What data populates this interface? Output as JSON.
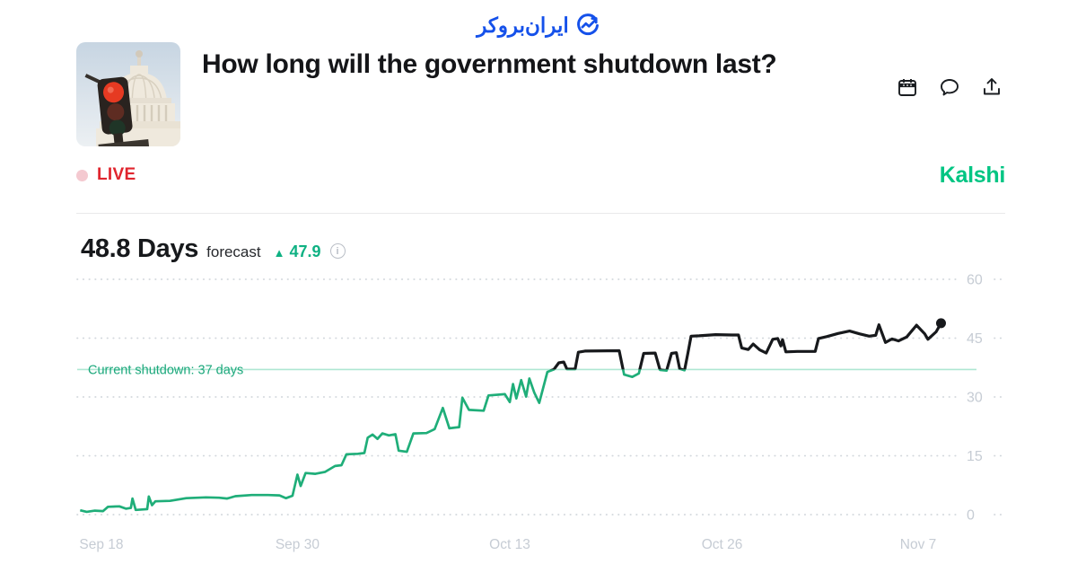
{
  "site_logo": {
    "text": "ایران‌بروکر",
    "color": "#1551ea"
  },
  "market": {
    "title": "How long will the government shutdown last?",
    "thumbnail": "us-capitol-with-red-traffic-light",
    "actions": [
      {
        "name": "calendar"
      },
      {
        "name": "comment"
      },
      {
        "name": "share"
      }
    ]
  },
  "status": {
    "live_label": "LIVE",
    "live_color": "#e0252e",
    "provider": "Kalshi",
    "provider_color": "#00c583"
  },
  "forecast": {
    "value": "48.8 Days",
    "label": "forecast",
    "change_direction": "up",
    "change_icon": "▲",
    "change_value": "47.9",
    "change_color": "#0fb183",
    "info_icon": "i"
  },
  "chart_data": {
    "type": "line",
    "title": "Government shutdown length forecast over time",
    "xlabel": "",
    "ylabel": "Days",
    "x_tick_labels": [
      "Sep 18",
      "Sep 30",
      "Oct 13",
      "Oct 26",
      "Nov 7"
    ],
    "x_tick_days": [
      0,
      12,
      25,
      38,
      50
    ],
    "x_range_days": [
      -1.3,
      52.5
    ],
    "y_ticks": [
      0,
      15,
      30,
      45,
      60
    ],
    "ylim": [
      0,
      65
    ],
    "grid": "dotted-horizontal",
    "axis_label_color": "#c6ccd4",
    "annotation": {
      "text": "Current shutdown: 37 days",
      "value": 37,
      "line_color": "#aee7d2",
      "text_color": "#1ca87c"
    },
    "series": [
      {
        "name": "forecast-days",
        "threshold": 37,
        "color_below": "#1fae79",
        "color_above": "#17191c",
        "end_dot": true,
        "points": [
          [
            -1.3,
            1.1
          ],
          [
            -0.9,
            0.7
          ],
          [
            -0.4,
            1.0
          ],
          [
            0.1,
            0.9
          ],
          [
            0.4,
            2.0
          ],
          [
            1.1,
            2.1
          ],
          [
            1.5,
            1.5
          ],
          [
            1.8,
            1.7
          ],
          [
            1.9,
            4.1
          ],
          [
            2.1,
            1.2
          ],
          [
            2.5,
            1.3
          ],
          [
            2.8,
            1.4
          ],
          [
            2.9,
            4.6
          ],
          [
            3.1,
            2.4
          ],
          [
            3.3,
            3.4
          ],
          [
            4.2,
            3.5
          ],
          [
            5.2,
            4.2
          ],
          [
            6.4,
            4.4
          ],
          [
            7.2,
            4.3
          ],
          [
            7.7,
            4.1
          ],
          [
            8.2,
            4.7
          ],
          [
            9.2,
            5.0
          ],
          [
            10.2,
            5.0
          ],
          [
            10.9,
            4.9
          ],
          [
            11.3,
            4.2
          ],
          [
            11.7,
            4.8
          ],
          [
            12.0,
            10.2
          ],
          [
            12.2,
            7.3
          ],
          [
            12.5,
            10.6
          ],
          [
            13.1,
            10.4
          ],
          [
            13.7,
            10.9
          ],
          [
            14.3,
            12.4
          ],
          [
            14.7,
            12.6
          ],
          [
            15.0,
            15.4
          ],
          [
            15.7,
            15.5
          ],
          [
            16.1,
            15.7
          ],
          [
            16.3,
            19.6
          ],
          [
            16.6,
            20.4
          ],
          [
            16.9,
            19.3
          ],
          [
            17.2,
            20.7
          ],
          [
            17.6,
            20.2
          ],
          [
            18.0,
            20.5
          ],
          [
            18.2,
            16.3
          ],
          [
            18.7,
            16.0
          ],
          [
            19.1,
            20.7
          ],
          [
            19.9,
            20.8
          ],
          [
            20.4,
            21.8
          ],
          [
            20.9,
            27.2
          ],
          [
            21.3,
            22.0
          ],
          [
            21.9,
            22.3
          ],
          [
            22.1,
            29.8
          ],
          [
            22.5,
            26.7
          ],
          [
            23.4,
            26.5
          ],
          [
            23.7,
            30.4
          ],
          [
            24.7,
            30.7
          ],
          [
            25.0,
            28.7
          ],
          [
            25.2,
            33.3
          ],
          [
            25.4,
            29.6
          ],
          [
            25.7,
            34.3
          ],
          [
            26.0,
            30.1
          ],
          [
            26.2,
            34.7
          ],
          [
            26.5,
            31.1
          ],
          [
            26.8,
            28.5
          ],
          [
            27.3,
            36.4
          ],
          [
            27.7,
            37.0
          ],
          [
            28.0,
            38.7
          ],
          [
            28.3,
            38.9
          ],
          [
            28.5,
            37.1
          ],
          [
            29.0,
            37.1
          ],
          [
            29.2,
            41.4
          ],
          [
            29.6,
            41.7
          ],
          [
            31.7,
            41.8
          ],
          [
            32.0,
            35.7
          ],
          [
            32.5,
            35.1
          ],
          [
            32.9,
            36.0
          ],
          [
            33.2,
            41.1
          ],
          [
            33.9,
            41.2
          ],
          [
            34.2,
            36.9
          ],
          [
            34.6,
            36.7
          ],
          [
            34.9,
            41.1
          ],
          [
            35.2,
            41.3
          ],
          [
            35.4,
            37.2
          ],
          [
            35.7,
            36.8
          ],
          [
            35.9,
            41.1
          ],
          [
            36.1,
            45.5
          ],
          [
            36.6,
            45.6
          ],
          [
            37.6,
            45.9
          ],
          [
            38.6,
            45.8
          ],
          [
            39.0,
            45.8
          ],
          [
            39.2,
            42.5
          ],
          [
            39.6,
            42.1
          ],
          [
            39.9,
            43.5
          ],
          [
            40.3,
            42.0
          ],
          [
            40.7,
            41.2
          ],
          [
            41.1,
            44.7
          ],
          [
            41.4,
            44.9
          ],
          [
            41.6,
            43.0
          ],
          [
            41.7,
            44.6
          ],
          [
            41.9,
            41.5
          ],
          [
            42.6,
            41.6
          ],
          [
            43.7,
            41.6
          ],
          [
            43.9,
            44.9
          ],
          [
            44.4,
            45.4
          ],
          [
            45.1,
            46.2
          ],
          [
            45.8,
            46.8
          ],
          [
            46.4,
            46.1
          ],
          [
            47.0,
            45.5
          ],
          [
            47.4,
            45.7
          ],
          [
            47.6,
            48.4
          ],
          [
            48.0,
            43.9
          ],
          [
            48.4,
            44.8
          ],
          [
            48.8,
            44.3
          ],
          [
            49.3,
            45.3
          ],
          [
            49.9,
            48.3
          ],
          [
            50.4,
            46.1
          ],
          [
            50.6,
            44.7
          ],
          [
            51.1,
            46.6
          ],
          [
            51.4,
            48.8
          ]
        ]
      }
    ]
  }
}
